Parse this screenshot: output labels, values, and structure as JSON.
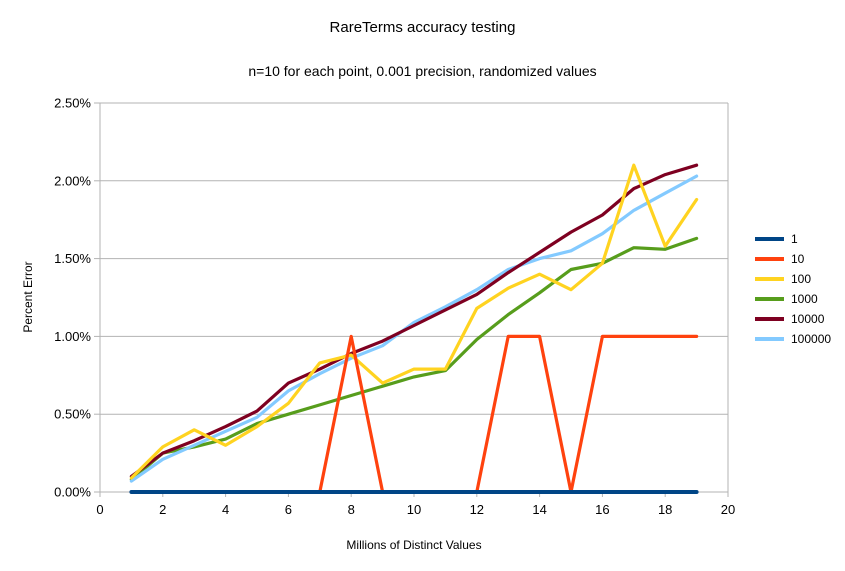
{
  "title": "RareTerms accuracy testing",
  "subtitle": "n=10 for each point, 0.001 precision, randomized values",
  "axes": {
    "y_title": "Percent Error",
    "x_title": "Millions of Distinct Values"
  },
  "colors": {
    "background": "#ffffff",
    "grid": "#b3b3b3",
    "axis": "#b3b3b3",
    "text": "#000000"
  },
  "legend": {
    "position": "right",
    "items": [
      "1",
      "10",
      "100",
      "1000",
      "10000",
      "100000"
    ]
  },
  "chart_data": {
    "type": "line",
    "title": "RareTerms accuracy testing",
    "subtitle": "n=10 for each point, 0.001 precision, randomized values",
    "xlabel": "Millions of Distinct Values",
    "ylabel": "Percent Error",
    "xlim": [
      0,
      20
    ],
    "ylim_percent": [
      0.0,
      2.5
    ],
    "grid": "horizontal",
    "legend_position": "right",
    "x_ticks": [
      {
        "label": "0",
        "value": 0
      },
      {
        "label": "2",
        "value": 2
      },
      {
        "label": "4",
        "value": 4
      },
      {
        "label": "6",
        "value": 6
      },
      {
        "label": "8",
        "value": 8
      },
      {
        "label": "10",
        "value": 10
      },
      {
        "label": "12",
        "value": 12
      },
      {
        "label": "14",
        "value": 14
      },
      {
        "label": "16",
        "value": 16
      },
      {
        "label": "18",
        "value": 18
      },
      {
        "label": "20",
        "value": 20
      }
    ],
    "y_ticks": [
      {
        "label": "0.00%",
        "value": 0.0
      },
      {
        "label": "0.50%",
        "value": 0.5
      },
      {
        "label": "1.00%",
        "value": 1.0
      },
      {
        "label": "1.50%",
        "value": 1.5
      },
      {
        "label": "2.00%",
        "value": 2.0
      },
      {
        "label": "2.50%",
        "value": 2.5
      }
    ],
    "x": [
      1,
      2,
      3,
      4,
      5,
      6,
      7,
      8,
      9,
      10,
      11,
      12,
      13,
      14,
      15,
      16,
      17,
      18,
      19
    ],
    "series": [
      {
        "name": "1",
        "color": "#004586",
        "line_width": 4,
        "values_percent": [
          0,
          0,
          0,
          0,
          0,
          0,
          0,
          0,
          0,
          0,
          0,
          0,
          0,
          0,
          0,
          0,
          0,
          0,
          0
        ]
      },
      {
        "name": "10",
        "color": "#ff420e",
        "line_width": 3.2,
        "values_percent": [
          0,
          0,
          0,
          0,
          0,
          0,
          0,
          1.0,
          0,
          0,
          0,
          0,
          1.0,
          1.0,
          0,
          1.0,
          1.0,
          1.0,
          1.0
        ]
      },
      {
        "name": "100",
        "color": "#ffd320",
        "line_width": 3.2,
        "values_percent": [
          0.09,
          0.29,
          0.4,
          0.3,
          0.42,
          0.57,
          0.83,
          0.88,
          0.7,
          0.79,
          0.79,
          1.18,
          1.31,
          1.4,
          1.3,
          1.47,
          2.1,
          1.58,
          1.88
        ]
      },
      {
        "name": "1000",
        "color": "#579d1c",
        "line_width": 3.2,
        "values_percent": [
          0.08,
          0.25,
          0.29,
          0.34,
          0.44,
          0.5,
          0.56,
          0.62,
          0.68,
          0.74,
          0.78,
          0.98,
          1.14,
          1.28,
          1.43,
          1.47,
          1.57,
          1.56,
          1.63
        ]
      },
      {
        "name": "10000",
        "color": "#7e0021",
        "line_width": 3.2,
        "values_percent": [
          0.1,
          0.25,
          0.33,
          0.42,
          0.52,
          0.7,
          0.79,
          0.89,
          0.97,
          1.07,
          1.17,
          1.27,
          1.41,
          1.54,
          1.67,
          1.78,
          1.95,
          2.04,
          2.1
        ]
      },
      {
        "name": "100000",
        "color": "#83caff",
        "line_width": 3.2,
        "values_percent": [
          0.07,
          0.21,
          0.3,
          0.39,
          0.48,
          0.65,
          0.76,
          0.86,
          0.94,
          1.09,
          1.19,
          1.3,
          1.43,
          1.5,
          1.55,
          1.66,
          1.81,
          1.92,
          2.03
        ]
      }
    ],
    "draw_order": [
      "1000",
      "100000",
      "10000",
      "100",
      "10",
      "1"
    ]
  }
}
